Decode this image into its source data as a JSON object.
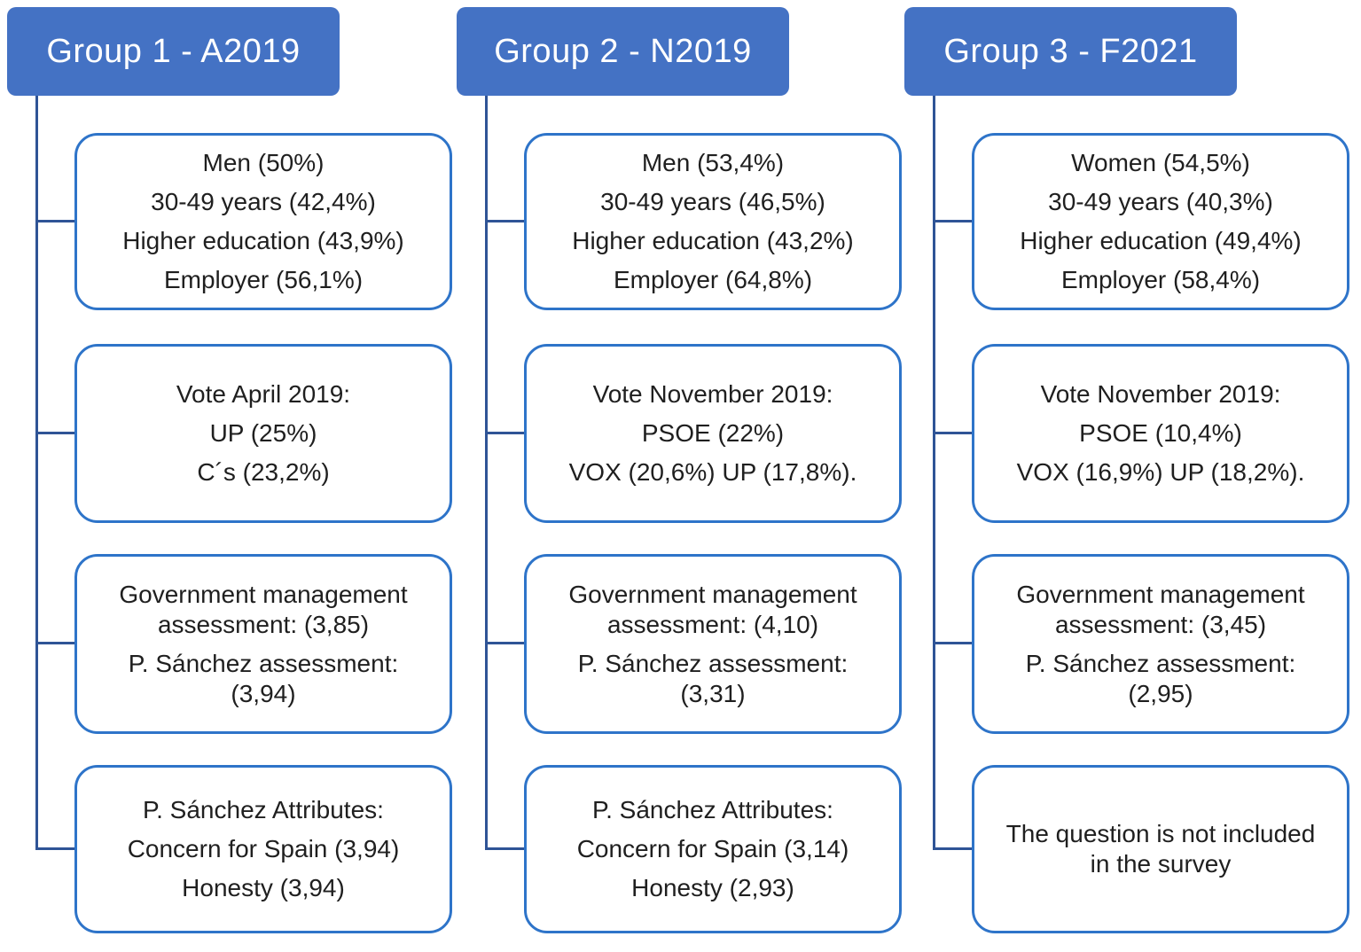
{
  "colors": {
    "header_background": "#4472c4",
    "header_text": "#ffffff",
    "box_border": "#2e74c9",
    "connector_line": "#2f5496",
    "body_text": "#1f1f1f"
  },
  "groups": [
    {
      "id": "group-1",
      "title": "Group 1 - A2019",
      "boxes": [
        {
          "name": "demographics",
          "paras": [
            [
              "Men (50%)"
            ],
            [
              "30-49 years (42,4%)"
            ],
            [
              "Higher education (43,9%)"
            ],
            [
              "Employer (56,1%)"
            ]
          ]
        },
        {
          "name": "vote",
          "paras": [
            [
              "Vote April 2019:"
            ],
            [
              "UP (25%)"
            ],
            [
              "C´s (23,2%)"
            ]
          ]
        },
        {
          "name": "assessment",
          "paras": [
            [
              "Government management",
              "assessment: (3,85)"
            ],
            [
              "P. Sánchez assessment:",
              "(3,94)"
            ]
          ]
        },
        {
          "name": "attributes",
          "paras": [
            [
              "P. Sánchez Attributes:"
            ],
            [
              "Concern for Spain (3,94)"
            ],
            [
              "Honesty (3,94)"
            ]
          ]
        }
      ]
    },
    {
      "id": "group-2",
      "title": "Group 2 - N2019",
      "boxes": [
        {
          "name": "demographics",
          "paras": [
            [
              "Men (53,4%)"
            ],
            [
              "30-49 years (46,5%)"
            ],
            [
              "Higher education (43,2%)"
            ],
            [
              "Employer (64,8%)"
            ]
          ]
        },
        {
          "name": "vote",
          "paras": [
            [
              "Vote November 2019:"
            ],
            [
              "PSOE (22%)"
            ],
            [
              "VOX (20,6%) UP (17,8%)."
            ]
          ]
        },
        {
          "name": "assessment",
          "paras": [
            [
              "Government management",
              "assessment: (4,10)"
            ],
            [
              "P. Sánchez assessment:",
              "(3,31)"
            ]
          ]
        },
        {
          "name": "attributes",
          "paras": [
            [
              "P. Sánchez Attributes:"
            ],
            [
              "Concern for Spain (3,14)"
            ],
            [
              "Honesty (2,93)"
            ]
          ]
        }
      ]
    },
    {
      "id": "group-3",
      "title": "Group 3 - F2021",
      "boxes": [
        {
          "name": "demographics",
          "paras": [
            [
              "Women (54,5%)"
            ],
            [
              "30-49 years (40,3%)"
            ],
            [
              "Higher education (49,4%)"
            ],
            [
              "Employer (58,4%)"
            ]
          ]
        },
        {
          "name": "vote",
          "paras": [
            [
              "Vote November 2019:"
            ],
            [
              "PSOE (10,4%)"
            ],
            [
              "VOX (16,9%) UP (18,2%)."
            ]
          ]
        },
        {
          "name": "assessment",
          "paras": [
            [
              "Government management",
              "assessment: (3,45)"
            ],
            [
              "P. Sánchez assessment:",
              "(2,95)"
            ]
          ]
        },
        {
          "name": "note",
          "paras": [
            [
              "The question is not included",
              "in the survey"
            ]
          ]
        }
      ]
    }
  ]
}
